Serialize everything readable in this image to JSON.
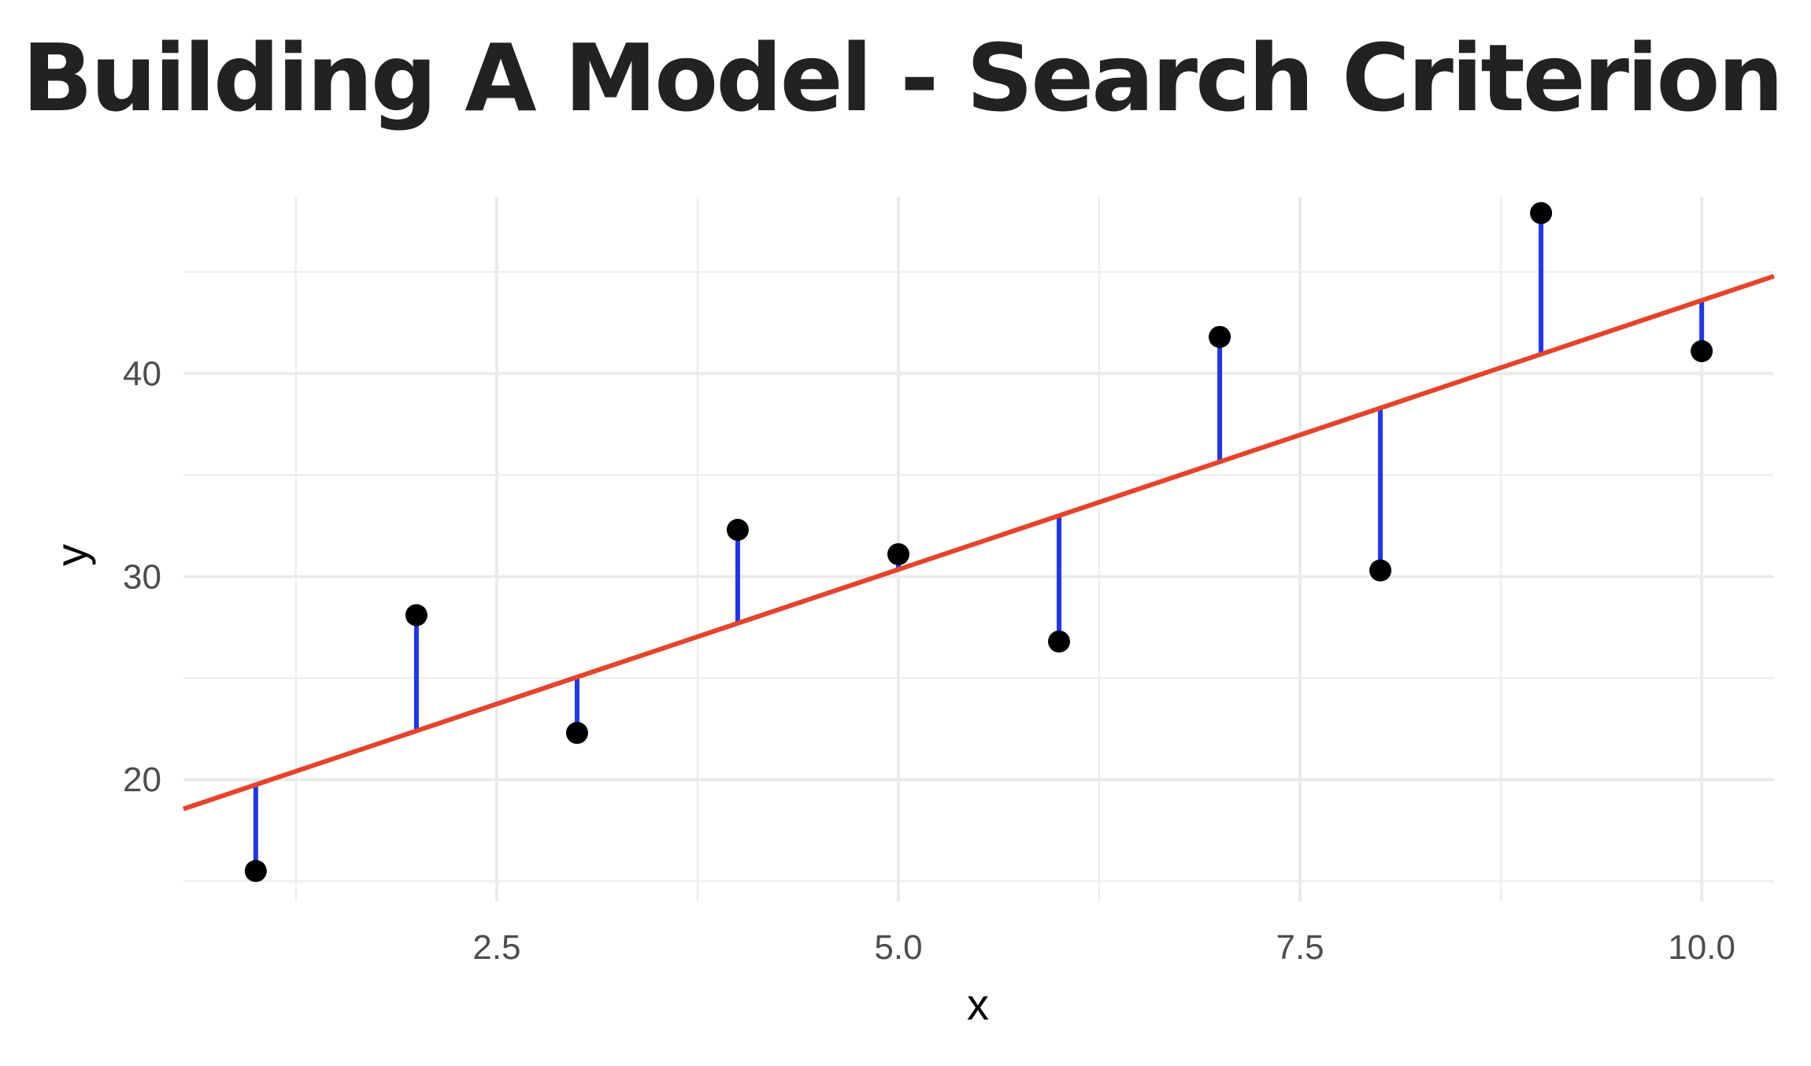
{
  "title": "Building A Model - Search Criterion",
  "chart_data": {
    "type": "scatter",
    "title": "Building A Model - Search Criterion",
    "xlabel": "x",
    "ylabel": "y",
    "xlim": [
      0.55,
      10.45
    ],
    "ylim": [
      14.0,
      48.7
    ],
    "x_ticks": [
      2.5,
      5.0,
      7.5,
      10.0
    ],
    "x_tick_labels": [
      "2.5",
      "5.0",
      "7.5",
      "10.0"
    ],
    "y_ticks": [
      20,
      30,
      40
    ],
    "y_tick_labels": [
      "20",
      "30",
      "40"
    ],
    "grid": true,
    "points": [
      {
        "x": 1,
        "y": 15.5
      },
      {
        "x": 2,
        "y": 28.1
      },
      {
        "x": 3,
        "y": 22.3
      },
      {
        "x": 4,
        "y": 32.3
      },
      {
        "x": 5,
        "y": 31.1
      },
      {
        "x": 6,
        "y": 26.8
      },
      {
        "x": 7,
        "y": 41.8
      },
      {
        "x": 8,
        "y": 30.3
      },
      {
        "x": 9,
        "y": 47.9
      },
      {
        "x": 10,
        "y": 41.1
      }
    ],
    "fit_line": {
      "intercept": 17.1,
      "slope": 2.65,
      "color": "#e5432a"
    },
    "residual_color": "#1f35f0",
    "point_color": "#000000",
    "grid_color": "#ebebeb"
  }
}
